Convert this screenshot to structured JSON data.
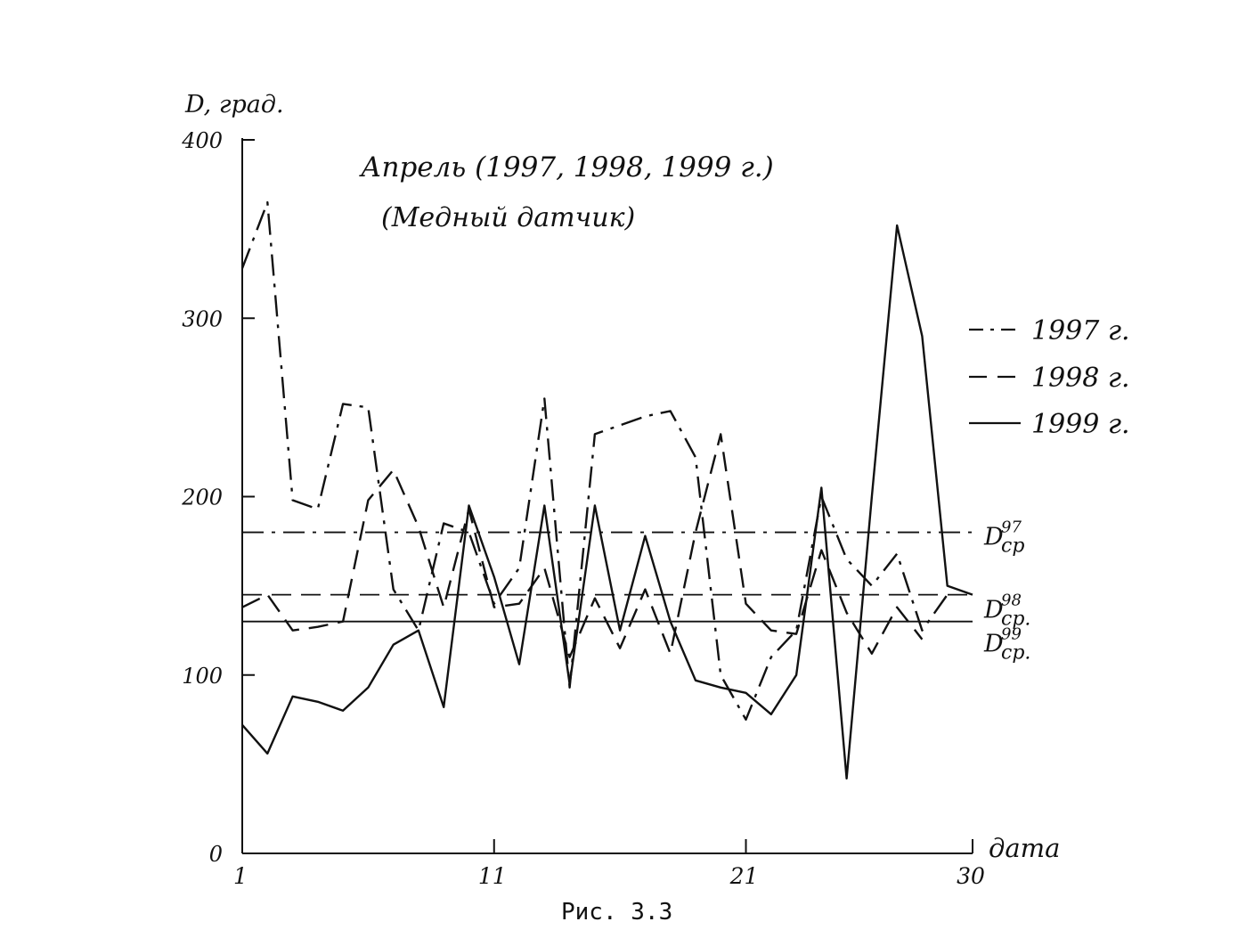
{
  "chart_data": {
    "type": "line",
    "title": "Апрель (1997, 1998, 1999 г.)",
    "subtitle": "(Медный датчик)",
    "ylabel": "D, град.",
    "xlabel": "дата",
    "caption": "Рис. 3.3",
    "ylim": [
      0,
      400
    ],
    "xlim": [
      1,
      30
    ],
    "yticks": [
      0,
      100,
      200,
      300,
      400
    ],
    "xticks": [
      1,
      11,
      21,
      30
    ],
    "legend_position": "right",
    "grid": false,
    "series": [
      {
        "name": "1997 г.",
        "style": "dashdot",
        "x": [
          1,
          2,
          3,
          4,
          5,
          6,
          7,
          8,
          9,
          10,
          11,
          12,
          13,
          14,
          15,
          16,
          17,
          18,
          19,
          20,
          21,
          22,
          23,
          24,
          25,
          26,
          27,
          28,
          29
        ],
        "y": [
          328,
          365,
          198,
          193,
          252,
          250,
          148,
          125,
          185,
          180,
          140,
          160,
          255,
          93,
          235,
          240,
          245,
          248,
          222,
          100,
          75,
          110,
          125,
          200,
          165,
          150,
          168,
          125,
          145
        ]
      },
      {
        "name": "1998 г.",
        "style": "dashed",
        "x": [
          1,
          2,
          3,
          4,
          5,
          6,
          7,
          8,
          9,
          10,
          11,
          12,
          13,
          14,
          15,
          16,
          17,
          18,
          19,
          20,
          21,
          22,
          23,
          24,
          25,
          26,
          27,
          28
        ],
        "y": [
          138,
          145,
          125,
          127,
          130,
          198,
          215,
          183,
          138,
          193,
          138,
          140,
          160,
          110,
          143,
          115,
          148,
          112,
          180,
          235,
          140,
          125,
          123,
          170,
          135,
          112,
          138,
          120
        ]
      },
      {
        "name": "1999 г.",
        "style": "solid",
        "x": [
          1,
          2,
          3,
          4,
          5,
          6,
          7,
          8,
          9,
          10,
          11,
          12,
          13,
          14,
          15,
          16,
          17,
          18,
          19,
          20,
          21,
          22,
          23,
          24,
          25,
          26,
          27,
          28,
          29,
          30
        ],
        "y": [
          72,
          56,
          88,
          85,
          80,
          93,
          117,
          125,
          82,
          195,
          155,
          106,
          195,
          95,
          195,
          125,
          178,
          130,
          97,
          93,
          90,
          78,
          100,
          205,
          42,
          200,
          352,
          290,
          150,
          145
        ]
      }
    ],
    "hlines": [
      {
        "label": "D",
        "sup": "97",
        "sub": "cp",
        "value": 180,
        "style": "dashdot"
      },
      {
        "label": "D",
        "sup": "98",
        "sub": "cp.",
        "value": 145,
        "style": "dashed"
      },
      {
        "label": "D",
        "sup": "99",
        "sub": "cp.",
        "value": 130,
        "style": "solid"
      }
    ]
  }
}
